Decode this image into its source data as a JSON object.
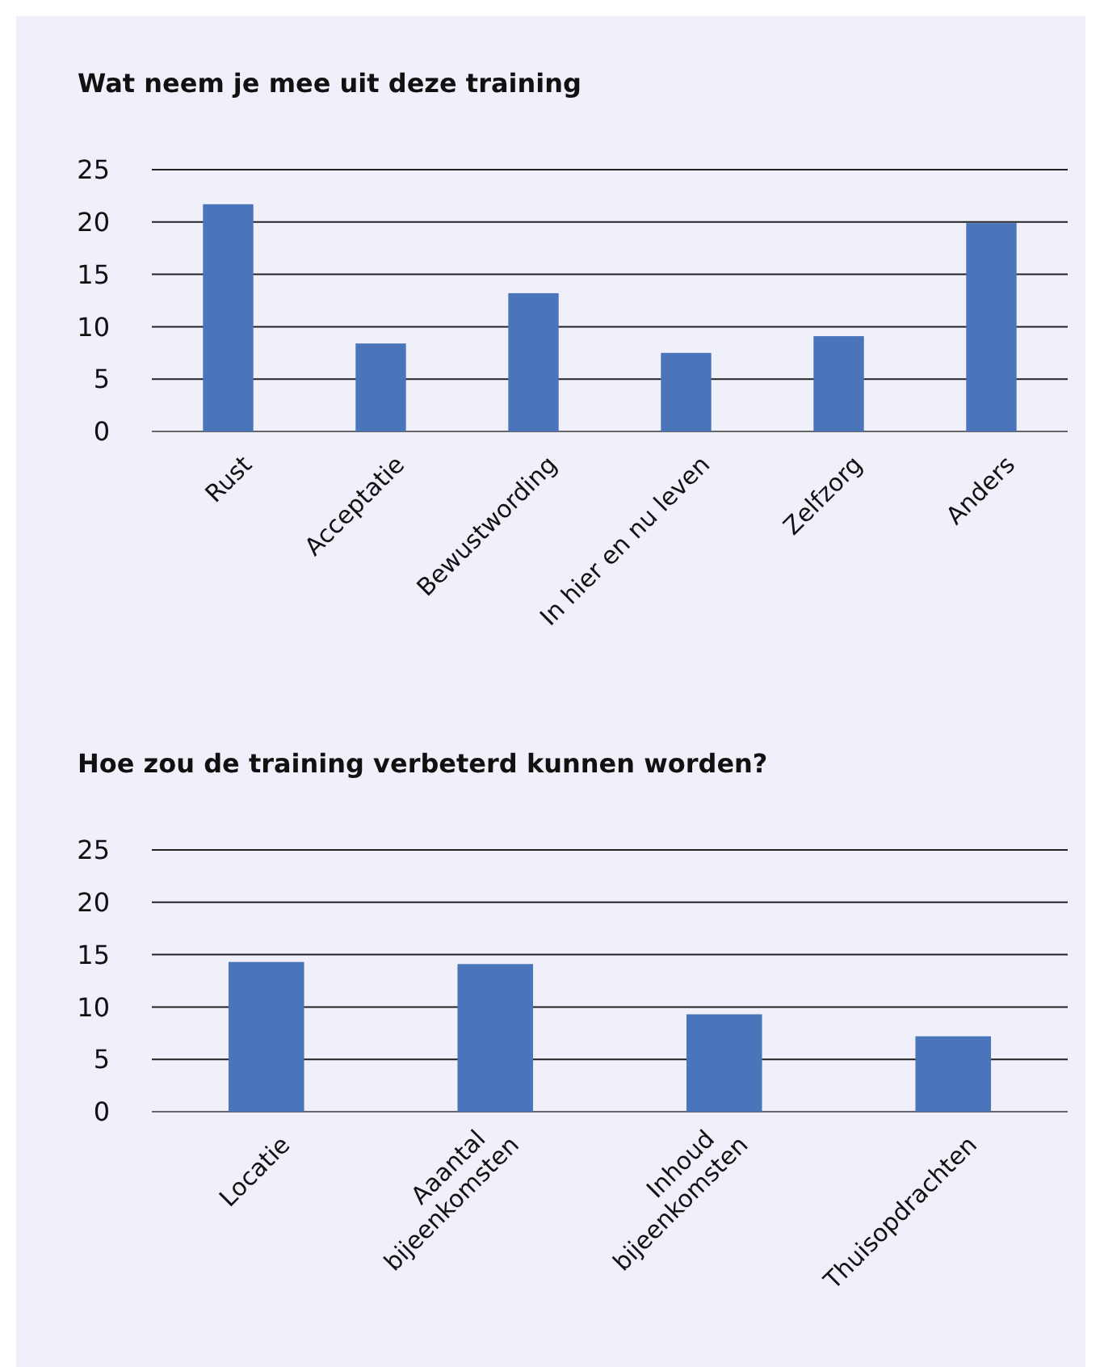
{
  "chart_data": [
    {
      "type": "bar",
      "title": "Wat neem je mee uit deze training",
      "categories": [
        "Rust",
        "Acceptatie",
        "Bewustwording",
        "In hier en nu leven",
        "Zelfzorg",
        "Anders"
      ],
      "values": [
        21.7,
        8.4,
        13.2,
        7.5,
        9.1,
        19.9
      ],
      "color": "#4a75ba",
      "ylim": [
        0,
        25
      ],
      "yticks": [
        0,
        5,
        10,
        15,
        20,
        25
      ],
      "grid": "y"
    },
    {
      "type": "bar",
      "title": "Hoe zou de training verbeterd kunnen worden?",
      "categories": [
        "Locatie",
        "Aaantal\nbijeenkomsten",
        "Inhoud\nbijeenkomsten",
        "Thuisopdrachten"
      ],
      "values": [
        14.3,
        14.1,
        9.3,
        7.2
      ],
      "color": "#4a75ba",
      "ylim": [
        0,
        25
      ],
      "yticks": [
        0,
        5,
        10,
        15,
        20,
        25
      ],
      "grid": "y"
    }
  ]
}
